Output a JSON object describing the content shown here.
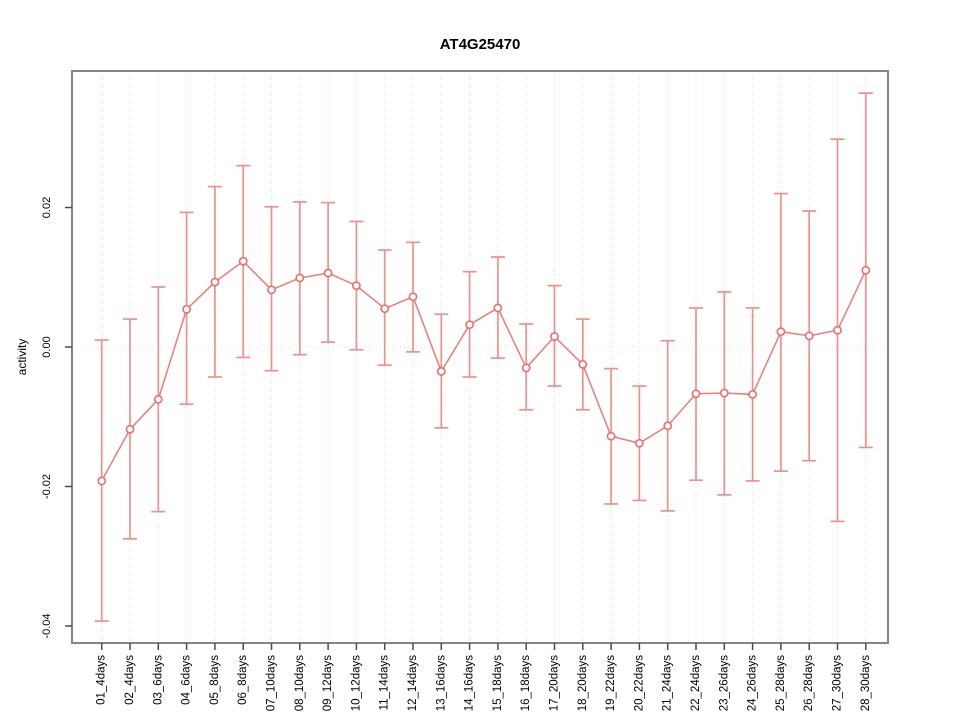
{
  "title": "AT4G25470",
  "chart_data": {
    "type": "line",
    "title": "AT4G25470",
    "xlabel": "",
    "ylabel": "activity",
    "legend": "none",
    "marker": "open-circle",
    "error_bars": true,
    "grid": "vertical dotted gridline per category; dotted horizontal line at y=0",
    "ylim": [
      -0.0424,
      0.0396
    ],
    "yticks": [
      -0.04,
      -0.02,
      0,
      0.02
    ],
    "categories": [
      "01_4days",
      "02_4days",
      "03_6days",
      "04_6days",
      "05_8days",
      "06_8days",
      "07_10days",
      "08_10days",
      "09_12days",
      "10_12days",
      "11_14days",
      "12_14days",
      "13_16days",
      "14_16days",
      "15_18days",
      "16_18days",
      "17_20days",
      "18_20days",
      "19_22days",
      "20_22days",
      "21_24days",
      "22_24days",
      "23_26days",
      "24_26days",
      "25_28days",
      "26_28days",
      "27_30days",
      "28_30days"
    ],
    "series": [
      {
        "name": "activity",
        "values": [
          -0.0192,
          -0.0118,
          -0.0075,
          0.0054,
          0.0093,
          0.0123,
          0.0082,
          0.0099,
          0.0106,
          0.0088,
          0.0055,
          0.0072,
          -0.0035,
          0.0032,
          0.0056,
          -0.003,
          0.0015,
          -0.0025,
          -0.0128,
          -0.0138,
          -0.0113,
          -0.0067,
          -0.0066,
          -0.0068,
          0.0022,
          0.0016,
          0.0024,
          0.011
        ],
        "upper": [
          0.001,
          0.004,
          0.0086,
          0.0193,
          0.023,
          0.026,
          0.0201,
          0.0208,
          0.0207,
          0.018,
          0.0139,
          0.015,
          0.0047,
          0.0108,
          0.0129,
          0.0033,
          0.0088,
          0.004,
          -0.0031,
          -0.0056,
          0.0009,
          0.0056,
          0.0079,
          0.0056,
          0.022,
          0.0195,
          0.0298,
          0.0364
        ],
        "lower": [
          -0.0393,
          -0.0275,
          -0.0236,
          -0.0082,
          -0.0043,
          -0.0015,
          -0.0034,
          -0.0011,
          0.0007,
          -0.0004,
          -0.0026,
          -0.0007,
          -0.0116,
          -0.0043,
          -0.0016,
          -0.009,
          -0.0056,
          -0.009,
          -0.0225,
          -0.022,
          -0.0235,
          -0.0191,
          -0.0212,
          -0.0192,
          -0.0178,
          -0.0163,
          -0.025,
          -0.0144
        ]
      }
    ],
    "colors": {
      "series": "#ee7b74",
      "marker_stroke": "#ea6f68",
      "error_bar": "#f0908a",
      "grid": "#dcdcdc",
      "box": "#858585",
      "tick": "#4a4a4a",
      "text": "#000000",
      "background": "#ffffff"
    }
  }
}
